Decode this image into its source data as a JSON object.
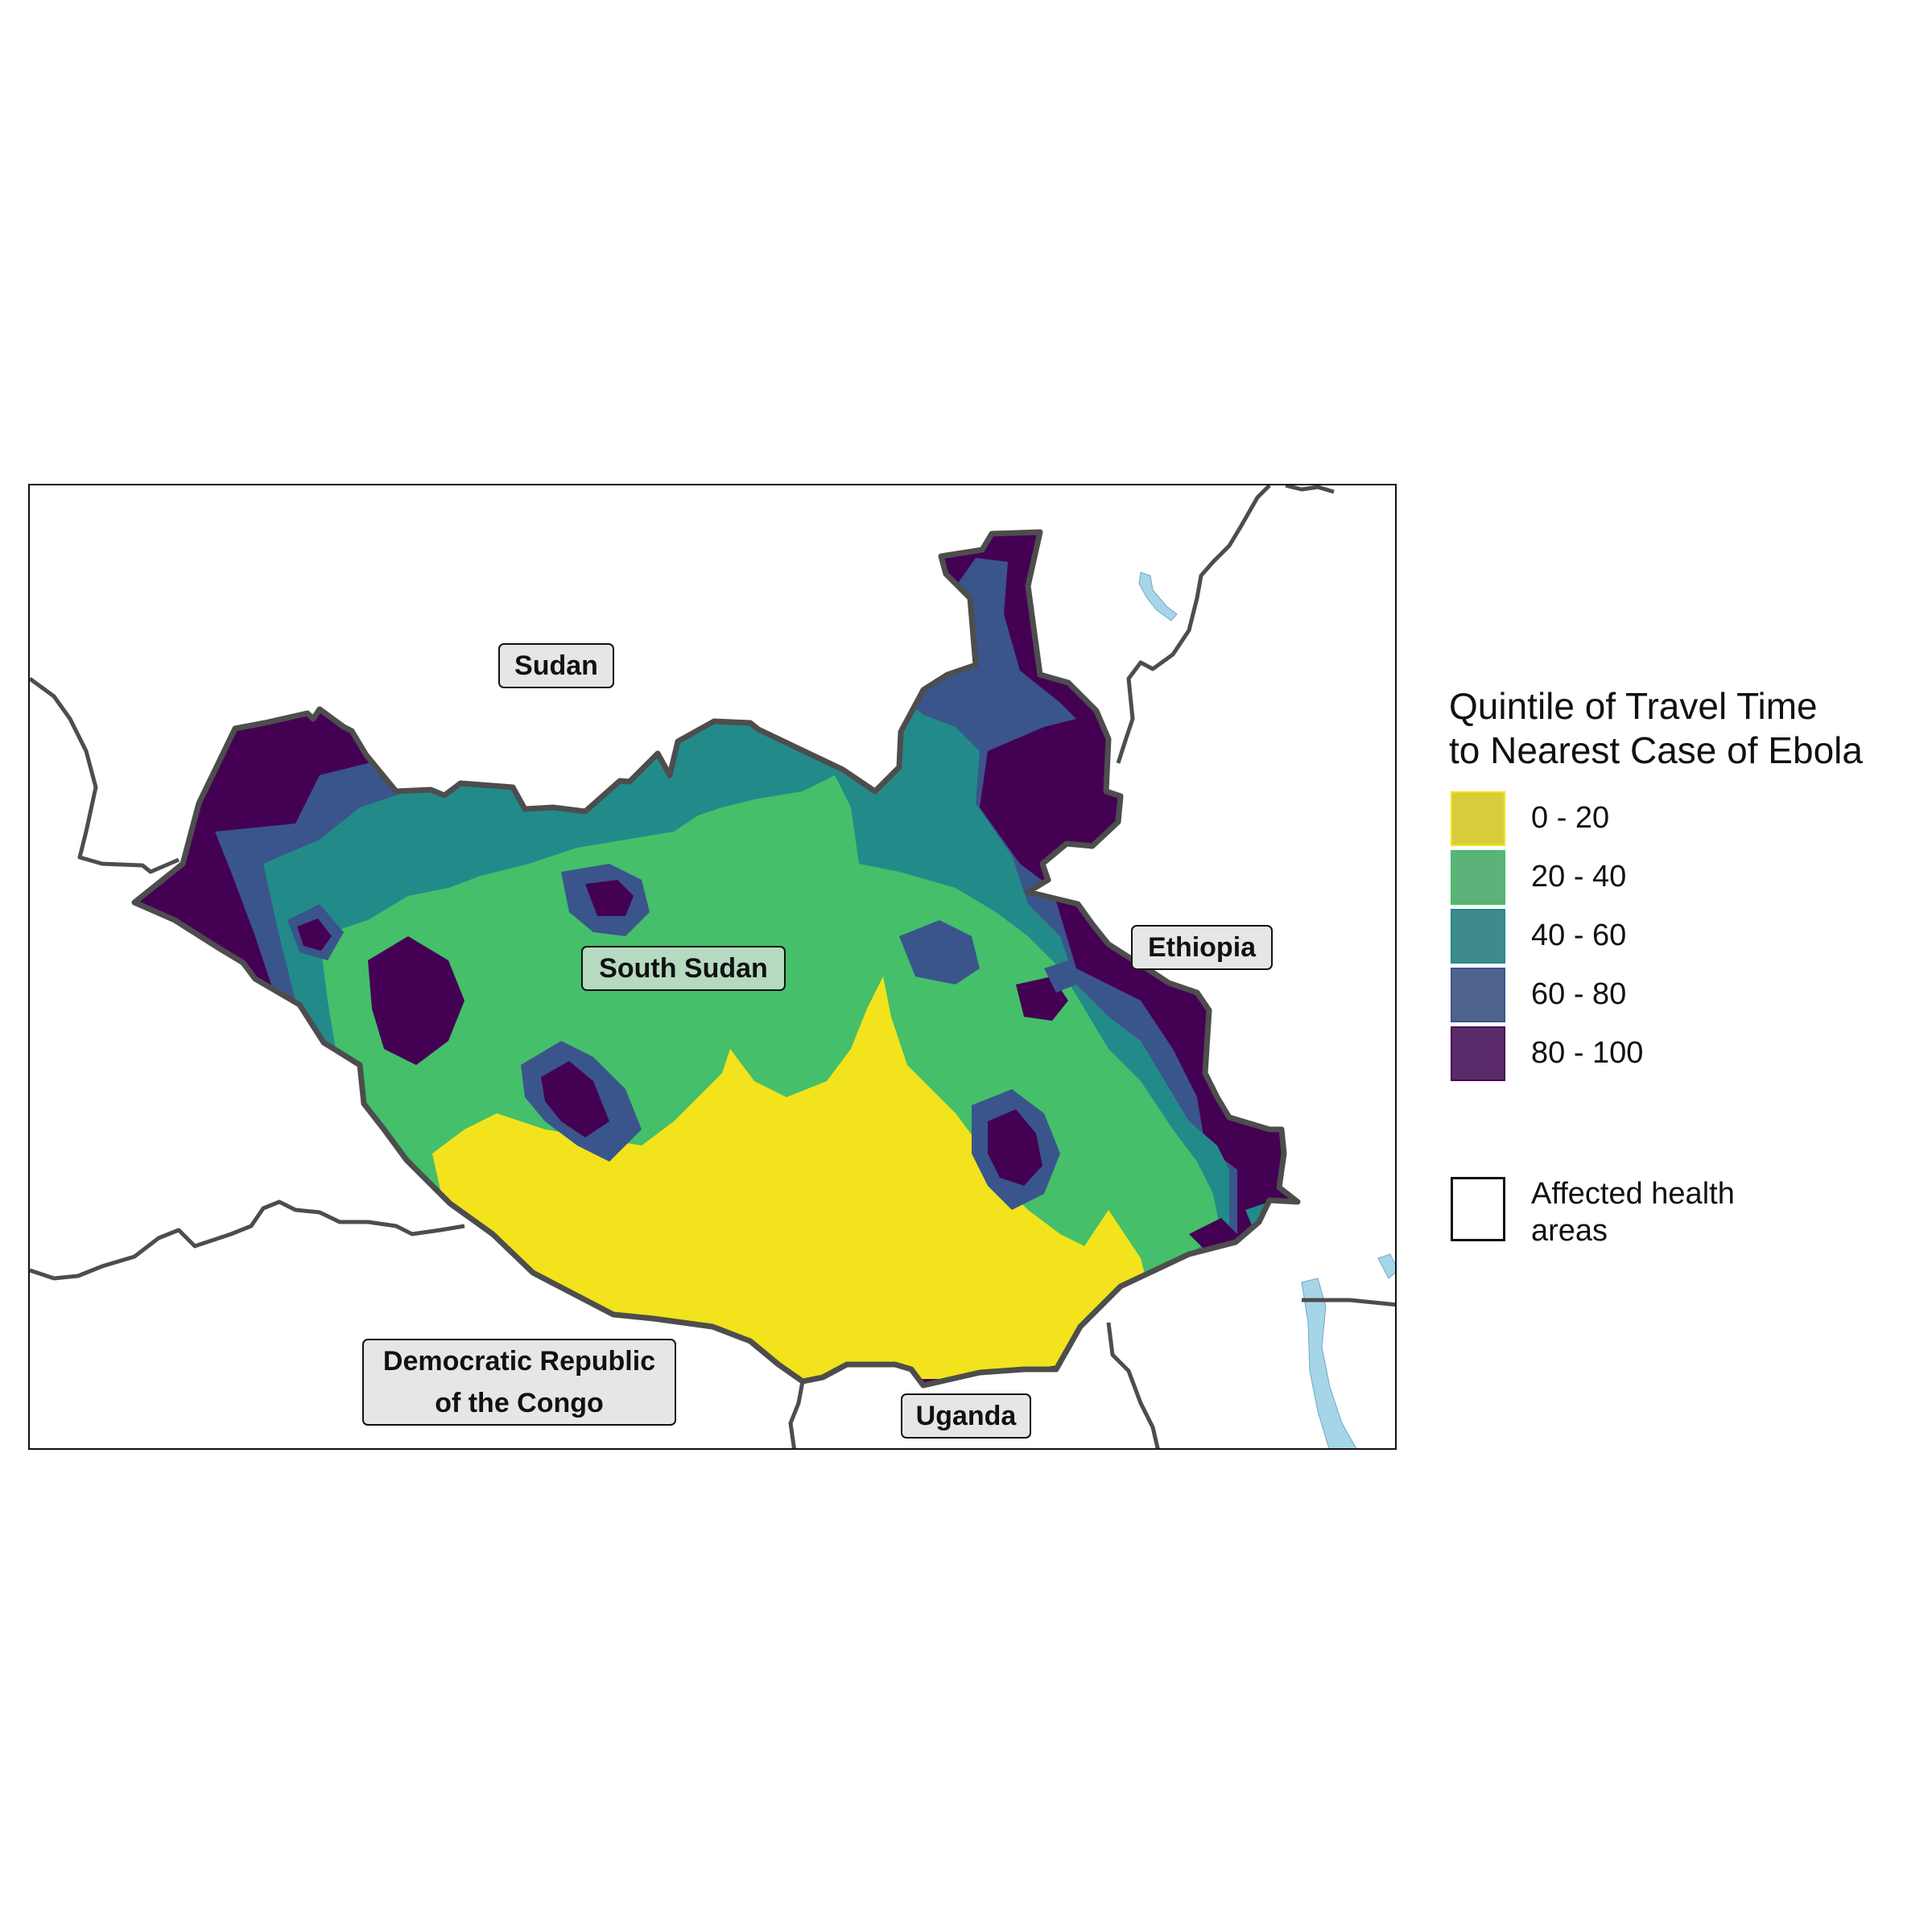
{
  "map": {
    "countries": {
      "sudan": "Sudan",
      "south_sudan": "South Sudan",
      "ethiopia": "Ethiopia",
      "drc": "Democratic Republic\nof the Congo",
      "uganda": "Uganda"
    },
    "colors": {
      "q0_20": "#f2e31d",
      "q20_40": "#45bf6a",
      "q40_60": "#228b8a",
      "q60_80": "#3a558b",
      "q80_100": "#440154",
      "border": "#4d4d4d",
      "water": "#a6d5e8"
    }
  },
  "legend": {
    "title": "Quintile of Travel Time\nto Nearest Case of Ebola",
    "items": [
      {
        "label": "0 - 20",
        "fill": "#d9cc3b",
        "stroke": "#f2e31d"
      },
      {
        "label": "20 - 40",
        "fill": "#5cb278",
        "stroke": "#45bf6a"
      },
      {
        "label": "40 - 60",
        "fill": "#3e8b8b",
        "stroke": "#228b8a"
      },
      {
        "label": "60 - 80",
        "fill": "#4f638f",
        "stroke": "#3a558b"
      },
      {
        "label": "80 - 100",
        "fill": "#5b2a6b",
        "stroke": "#440154"
      }
    ],
    "outline_label": "Affected health\nareas"
  }
}
